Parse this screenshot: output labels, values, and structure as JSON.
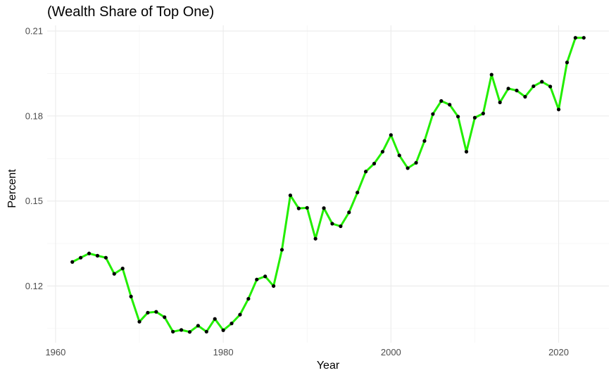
{
  "chart_data": {
    "type": "line",
    "title": "(Wealth Share of Top One)",
    "xlabel": "Year",
    "ylabel": "Percent",
    "xlim": [
      1959,
      2026
    ],
    "ylim": [
      0.1,
      0.212
    ],
    "xticks": [
      1960,
      1980,
      2000,
      2020
    ],
    "yticks": [
      0.12,
      0.15,
      0.18,
      0.21
    ],
    "ytick_labels": [
      "0.12",
      "0.15",
      "0.18",
      "0.21"
    ],
    "grid": true,
    "line_color": "#22ee00",
    "point_color": "#000000",
    "series": [
      {
        "x": [
          1962,
          1963,
          1964,
          1965,
          1966,
          1967,
          1968,
          1969,
          1970,
          1971,
          1972,
          1973,
          1974,
          1975,
          1976,
          1977,
          1978,
          1979,
          1980,
          1981,
          1982,
          1983,
          1984,
          1985,
          1986,
          1987,
          1988,
          1989,
          1990,
          1991,
          1992,
          1993,
          1994,
          1995,
          1996,
          1997,
          1998,
          1999,
          2000,
          2001,
          2002,
          2003,
          2004,
          2005,
          2006,
          2007,
          2008,
          2009,
          2010,
          2011,
          2012,
          2013,
          2014,
          2015,
          2016,
          2017,
          2018,
          2019,
          2020,
          2021,
          2022,
          2023
        ],
        "y": [
          0.1285,
          0.13,
          0.1315,
          0.1307,
          0.13,
          0.1243,
          0.1262,
          0.1163,
          0.1074,
          0.1106,
          0.1109,
          0.109,
          0.1039,
          0.1045,
          0.1038,
          0.106,
          0.1039,
          0.1084,
          0.1044,
          0.1068,
          0.1099,
          0.1155,
          0.1223,
          0.1234,
          0.12,
          0.1328,
          0.152,
          0.1474,
          0.1476,
          0.1367,
          0.1475,
          0.142,
          0.1411,
          0.146,
          0.153,
          0.1604,
          0.1632,
          0.1674,
          0.1733,
          0.1661,
          0.1616,
          0.1635,
          0.1712,
          0.1807,
          0.1853,
          0.184,
          0.1798,
          0.1674,
          0.1794,
          0.1809,
          0.1946,
          0.1848,
          0.1897,
          0.189,
          0.1868,
          0.1905,
          0.1921,
          0.1904,
          0.1823,
          0.1989,
          0.2076,
          0.2076
        ]
      }
    ]
  }
}
